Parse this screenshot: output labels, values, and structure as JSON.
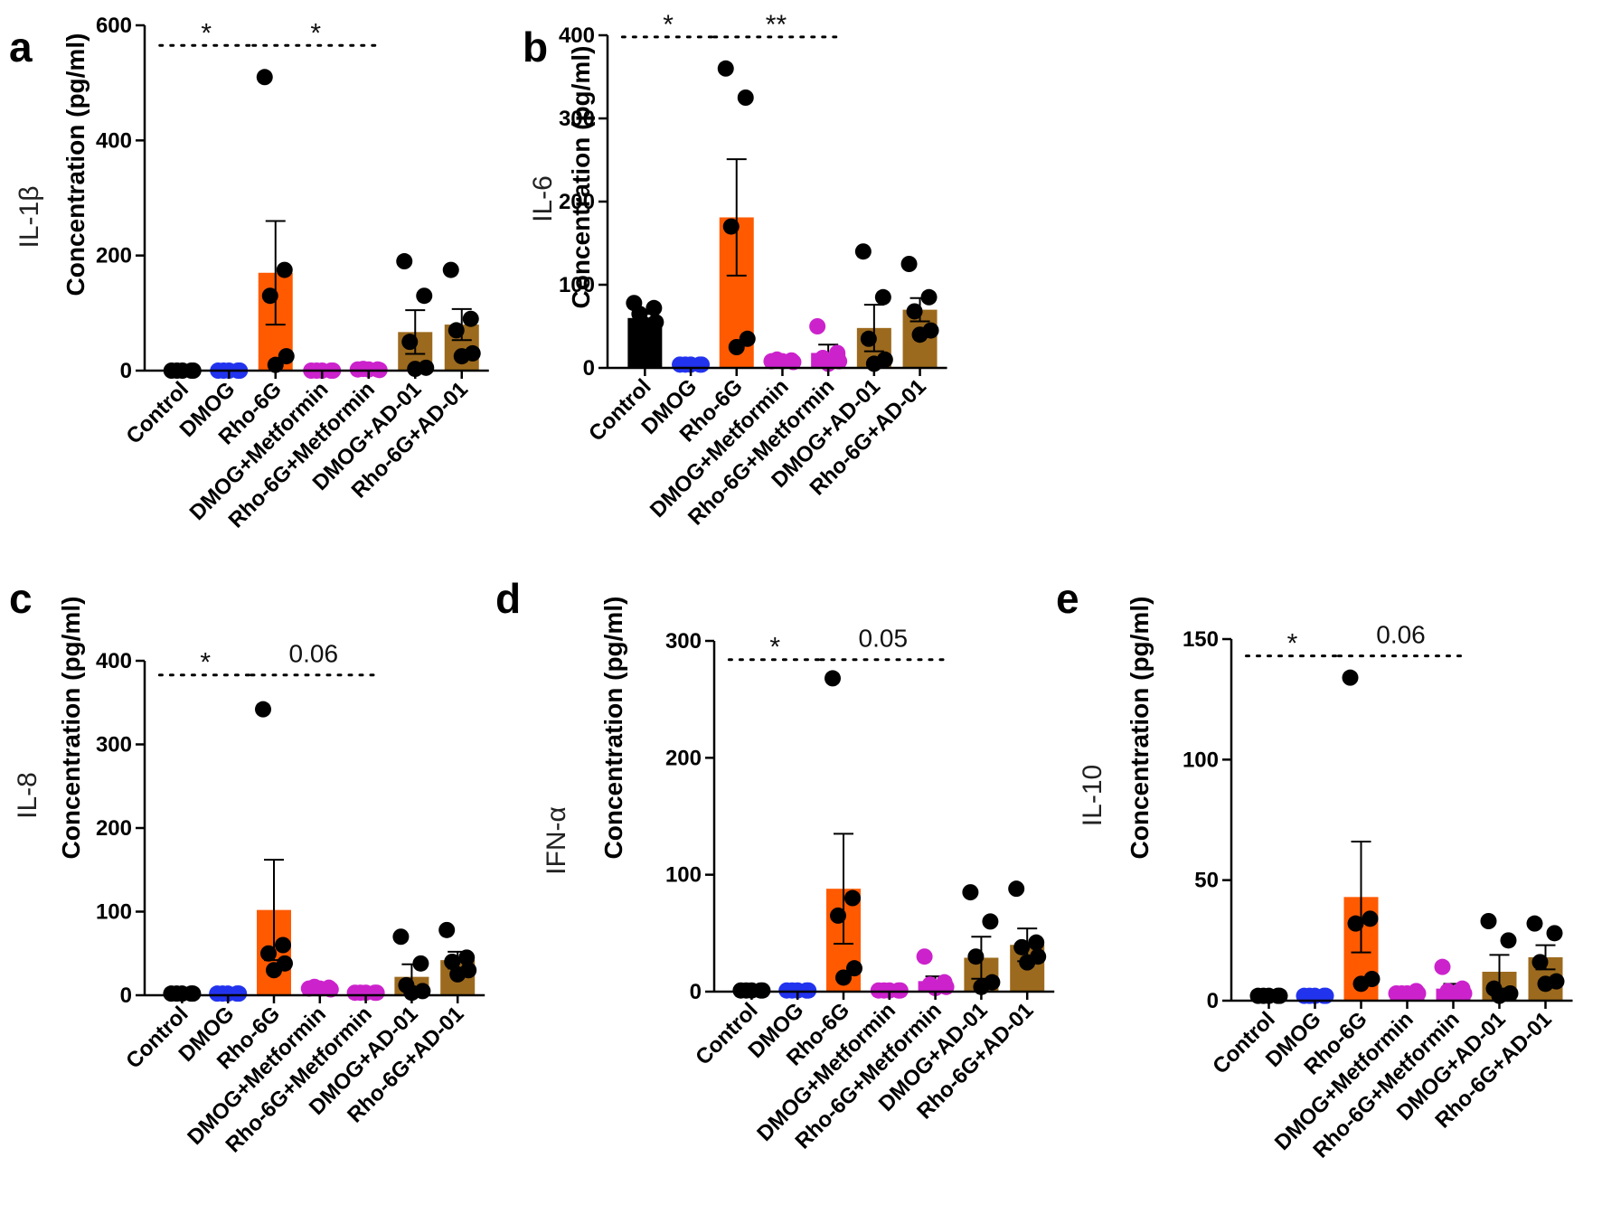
{
  "figure": {
    "colors": {
      "control": "#000000",
      "dmog": "#2233ee",
      "rho6g": "#ff5a00",
      "metformin": "#cc22cc",
      "ad01": "#9c6a1e",
      "axis": "#000000"
    },
    "y_axis_label": "Concentration (pg/ml)"
  },
  "chart_data": [
    {
      "type": "bar",
      "panel": "a",
      "cytokine": "IL-1β",
      "ylabel": "Concentration (pg/ml)",
      "ylim": [
        0,
        600
      ],
      "yticks": [
        0,
        200,
        400,
        600
      ],
      "categories": [
        "Control",
        "DMOG",
        "Rho-6G",
        "DMOG+Metformin",
        "Rho-6G+Metformin",
        "DMOG+AD-01",
        "Rho-6G+AD-01"
      ],
      "colors": [
        "#000000",
        "#2233ee",
        "#ff5a00",
        "#cc22cc",
        "#cc22cc",
        "#9c6a1e",
        "#9c6a1e"
      ],
      "dot_colors": [
        "#000000",
        "#2233ee",
        "#000000",
        "#cc22cc",
        "#cc22cc",
        "#000000",
        "#000000"
      ],
      "values": [
        0,
        0,
        170,
        0,
        2,
        67,
        80
      ],
      "sem": [
        0,
        0,
        90,
        0,
        0,
        38,
        27
      ],
      "points": [
        [
          0,
          0,
          0,
          0,
          0
        ],
        [
          0,
          0,
          0,
          0,
          0
        ],
        [
          510,
          175,
          130,
          25,
          10
        ],
        [
          0,
          0,
          0,
          0,
          0
        ],
        [
          2,
          2,
          3,
          1,
          2
        ],
        [
          190,
          130,
          50,
          5,
          3
        ],
        [
          175,
          90,
          70,
          30,
          25
        ]
      ],
      "significance": [
        {
          "label": "*",
          "from": 0,
          "to": 2,
          "y": 565
        },
        {
          "label": "*",
          "from": 2,
          "to": 4,
          "y": 565
        }
      ]
    },
    {
      "type": "bar",
      "panel": "b",
      "cytokine": "IL-6",
      "ylabel": "Concentration (pg/ml)",
      "ylim": [
        0,
        400
      ],
      "yticks": [
        0,
        100,
        200,
        300,
        400
      ],
      "categories": [
        "Control",
        "DMOG",
        "Rho-6G",
        "DMOG+Metformin",
        "Rho-6G+Metformin",
        "DMOG+AD-01",
        "Rho-6G+AD-01"
      ],
      "colors": [
        "#000000",
        "#2233ee",
        "#ff5a00",
        "#cc22cc",
        "#cc22cc",
        "#9c6a1e",
        "#9c6a1e"
      ],
      "dot_colors": [
        "#000000",
        "#2233ee",
        "#000000",
        "#cc22cc",
        "#cc22cc",
        "#000000",
        "#000000"
      ],
      "values": [
        60,
        4,
        181,
        8,
        18,
        48,
        70
      ],
      "sem": [
        5,
        0,
        70,
        0,
        10,
        28,
        14
      ],
      "points": [
        [
          78,
          72,
          65,
          55,
          52
        ],
        [
          4,
          4,
          4,
          4,
          4
        ],
        [
          360,
          325,
          170,
          35,
          25
        ],
        [
          8,
          9,
          10,
          7,
          8
        ],
        [
          50,
          18,
          12,
          8,
          5
        ],
        [
          140,
          85,
          35,
          10,
          5
        ],
        [
          125,
          85,
          68,
          45,
          40
        ]
      ],
      "significance": [
        {
          "label": "*",
          "from": 0,
          "to": 2,
          "y": 398
        },
        {
          "label": "**",
          "from": 2,
          "to": 4,
          "y": 398
        }
      ]
    },
    {
      "type": "bar",
      "panel": "c",
      "cytokine": "IL-8",
      "ylabel": "Concentration (pg/ml)",
      "ylim": [
        0,
        400
      ],
      "yticks": [
        0,
        100,
        200,
        300,
        400
      ],
      "categories": [
        "Control",
        "DMOG",
        "Rho-6G",
        "DMOG+Metformin",
        "Rho-6G+Metformin",
        "DMOG+AD-01",
        "Rho-6G+AD-01"
      ],
      "colors": [
        "#000000",
        "#2233ee",
        "#ff5a00",
        "#cc22cc",
        "#cc22cc",
        "#9c6a1e",
        "#9c6a1e"
      ],
      "dot_colors": [
        "#000000",
        "#2233ee",
        "#000000",
        "#cc22cc",
        "#cc22cc",
        "#000000",
        "#000000"
      ],
      "values": [
        2,
        2,
        102,
        8,
        3,
        22,
        42
      ],
      "sem": [
        0,
        0,
        60,
        0,
        0,
        15,
        10
      ],
      "points": [
        [
          2,
          2,
          2,
          2,
          2
        ],
        [
          2,
          2,
          2,
          2,
          2
        ],
        [
          342,
          60,
          50,
          38,
          30
        ],
        [
          8,
          9,
          10,
          7,
          8
        ],
        [
          3,
          3,
          3,
          3,
          3
        ],
        [
          70,
          38,
          12,
          5,
          3
        ],
        [
          78,
          45,
          40,
          30,
          25
        ]
      ],
      "significance": [
        {
          "label": "*",
          "from": 0,
          "to": 2,
          "y": 383
        },
        {
          "label": "0.06",
          "from": 2,
          "to": 4,
          "y": 383
        }
      ]
    },
    {
      "type": "bar",
      "panel": "d",
      "cytokine": "IFN-α",
      "ylabel": "Concentration (pg/ml)",
      "ylim": [
        0,
        300
      ],
      "yticks": [
        0,
        100,
        200,
        300
      ],
      "categories": [
        "Control",
        "DMOG",
        "Rho-6G",
        "DMOG+Metformin",
        "Rho-6G+Metformin",
        "DMOG+AD-01",
        "Rho-6G+AD-01"
      ],
      "colors": [
        "#000000",
        "#2233ee",
        "#ff5a00",
        "#cc22cc",
        "#cc22cc",
        "#9c6a1e",
        "#9c6a1e"
      ],
      "dot_colors": [
        "#000000",
        "#2233ee",
        "#000000",
        "#cc22cc",
        "#cc22cc",
        "#000000",
        "#000000"
      ],
      "values": [
        1,
        1,
        88,
        1,
        9,
        29,
        40
      ],
      "sem": [
        0,
        0,
        47,
        0,
        4,
        18,
        14
      ],
      "points": [
        [
          1,
          1,
          1,
          1,
          1
        ],
        [
          1,
          1,
          1,
          1,
          1
        ],
        [
          268,
          80,
          65,
          20,
          12
        ],
        [
          1,
          1,
          1,
          1,
          1
        ],
        [
          30,
          8,
          6,
          4,
          3
        ],
        [
          85,
          60,
          30,
          8,
          4
        ],
        [
          88,
          42,
          38,
          30,
          25
        ]
      ],
      "significance": [
        {
          "label": "*",
          "from": 0,
          "to": 2,
          "y": 284
        },
        {
          "label": "0.05",
          "from": 2,
          "to": 4,
          "y": 284
        }
      ]
    },
    {
      "type": "bar",
      "panel": "e",
      "cytokine": "IL-10",
      "ylabel": "Concentration (pg/ml)",
      "ylim": [
        0,
        150
      ],
      "yticks": [
        0,
        50,
        100,
        150
      ],
      "categories": [
        "Control",
        "DMOG",
        "Rho-6G",
        "DMOG+Metformin",
        "Rho-6G+Metformin",
        "DMOG+AD-01",
        "Rho-6G+AD-01"
      ],
      "colors": [
        "#000000",
        "#2233ee",
        "#ff5a00",
        "#cc22cc",
        "#cc22cc",
        "#9c6a1e",
        "#9c6a1e"
      ],
      "dot_colors": [
        "#000000",
        "#2233ee",
        "#000000",
        "#cc22cc",
        "#cc22cc",
        "#000000",
        "#000000"
      ],
      "values": [
        2,
        2,
        43,
        3,
        5,
        12,
        18
      ],
      "sem": [
        0,
        0,
        23,
        0,
        2,
        7,
        5
      ],
      "points": [
        [
          2,
          2,
          2,
          2,
          2
        ],
        [
          2,
          2,
          2,
          2,
          2
        ],
        [
          134,
          34,
          32,
          9,
          7
        ],
        [
          3,
          4,
          3,
          3,
          3
        ],
        [
          14,
          5,
          4,
          3,
          3
        ],
        [
          33,
          25,
          5,
          3,
          2
        ],
        [
          32,
          28,
          16,
          8,
          7
        ]
      ],
      "significance": [
        {
          "label": "*",
          "from": 0,
          "to": 2,
          "y": 143
        },
        {
          "label": "0.06",
          "from": 2,
          "to": 4,
          "y": 143
        }
      ]
    }
  ]
}
